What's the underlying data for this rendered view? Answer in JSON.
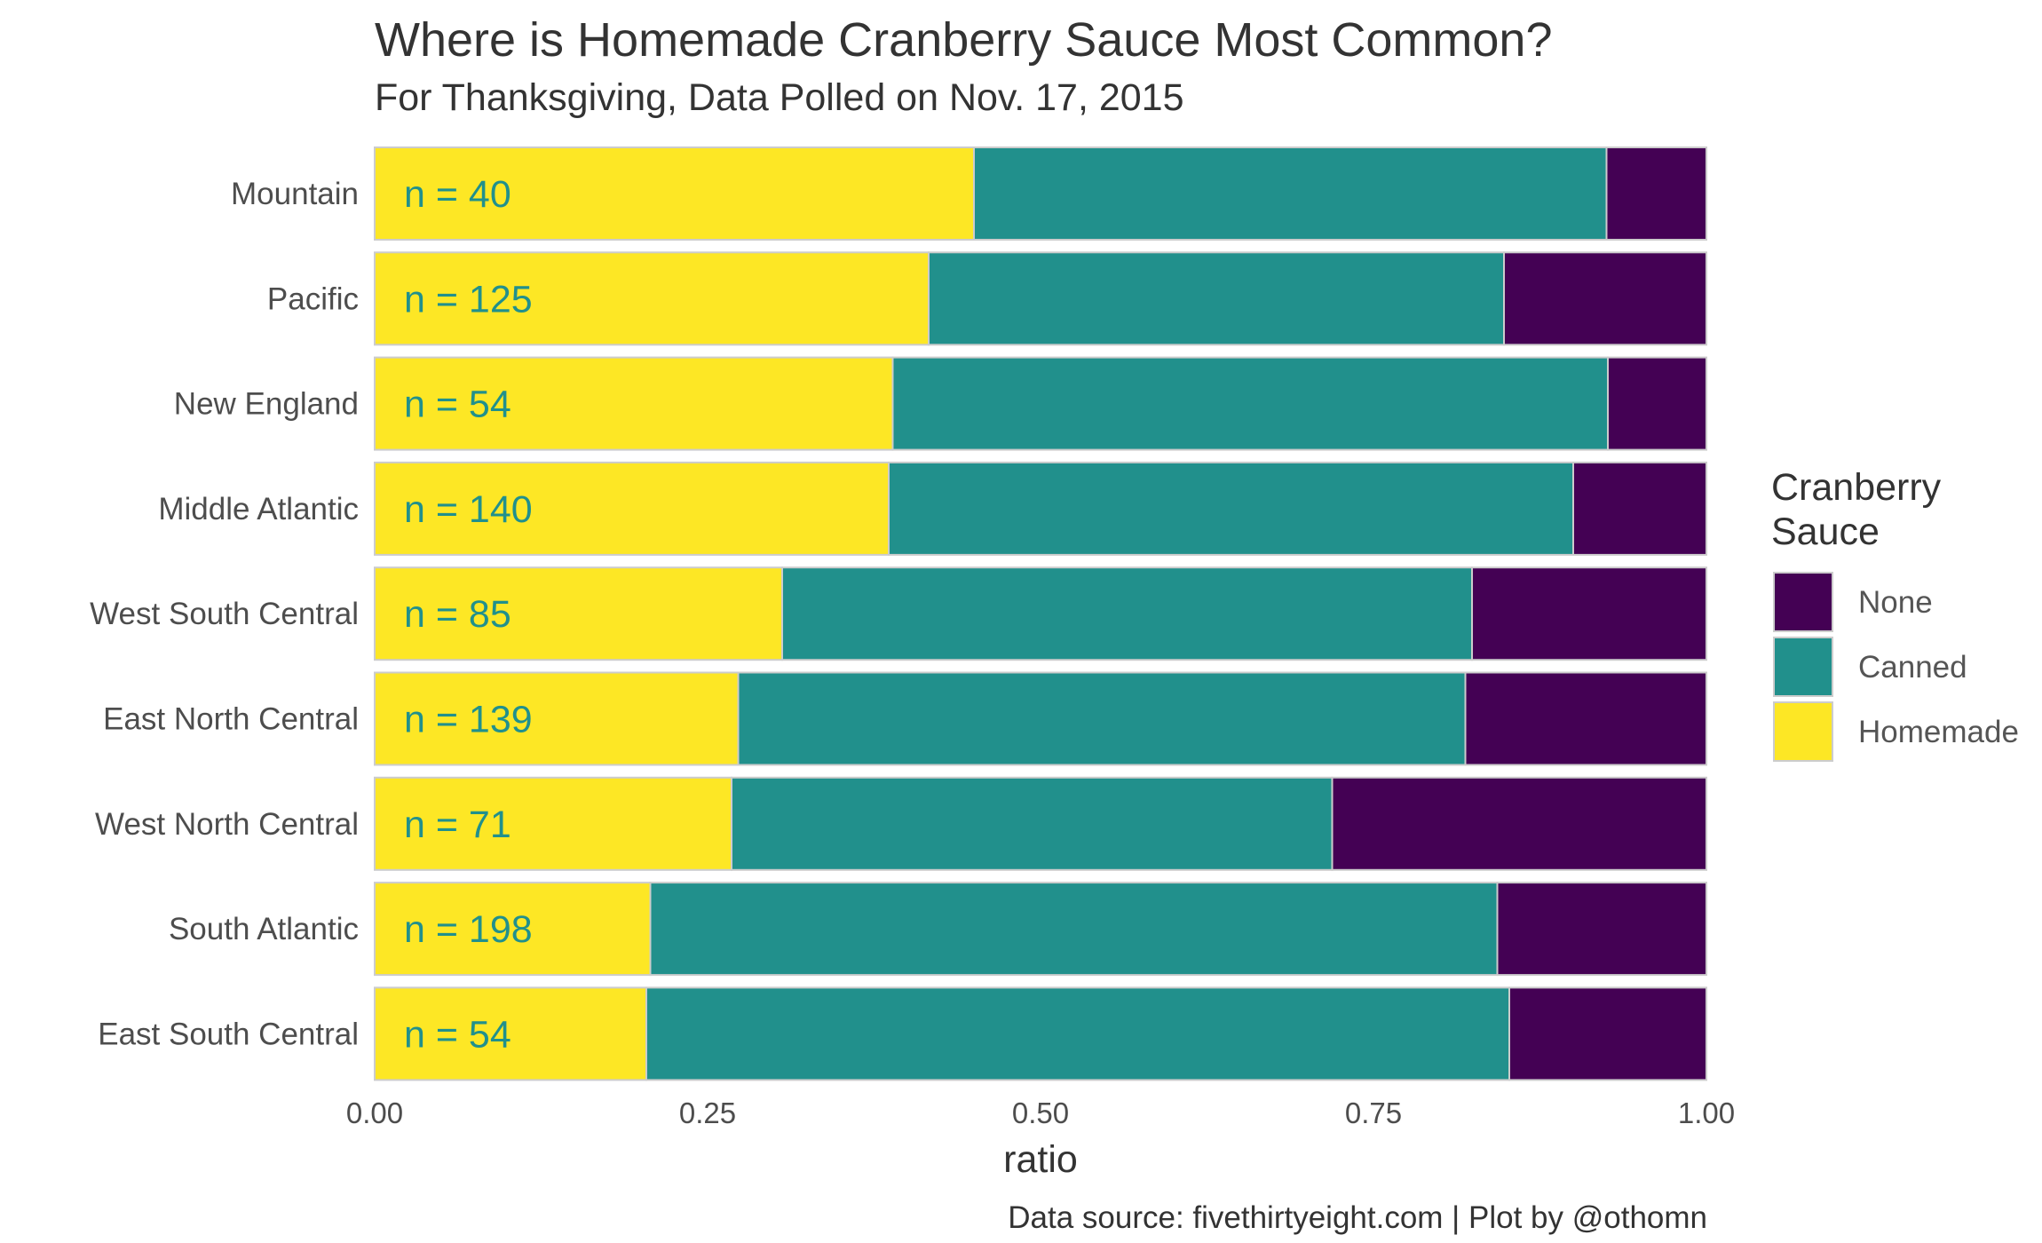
{
  "title": "Where is Homemade Cranberry Sauce Most Common?",
  "subtitle": "For Thanksgiving, Data Polled on Nov. 17, 2015",
  "caption": "Data source: fivethirtyeight.com | Plot by @othomn",
  "legend": {
    "title_lines": [
      "Cranberry",
      "Sauce"
    ],
    "placement": "right"
  },
  "chart_data": {
    "type": "bar",
    "orientation": "horizontal",
    "stacked": true,
    "xlabel": "ratio",
    "ylabel": "",
    "xlim": [
      0,
      1
    ],
    "x_ticks": [
      "0.00",
      "0.25",
      "0.50",
      "0.75",
      "1.00"
    ],
    "x_tick_values": [
      0,
      0.25,
      0.5,
      0.75,
      1
    ],
    "grid": false,
    "categories": [
      "Mountain",
      "Pacific",
      "New England",
      "Middle Atlantic",
      "West South Central",
      "East North Central",
      "West North Central",
      "South Atlantic",
      "East South Central"
    ],
    "n_labels": [
      "n = 40",
      "n = 125",
      "n = 54",
      "n = 140",
      "n = 85",
      "n = 139",
      "n = 71",
      "n = 198",
      "n = 54"
    ],
    "series": [
      {
        "name": "Homemade",
        "color": "#fde725",
        "values": [
          0.45,
          0.416,
          0.389,
          0.386,
          0.306,
          0.273,
          0.268,
          0.207,
          0.204
        ]
      },
      {
        "name": "Canned",
        "color": "#21908c",
        "values": [
          0.475,
          0.432,
          0.537,
          0.514,
          0.518,
          0.546,
          0.451,
          0.636,
          0.648
        ]
      },
      {
        "name": "None",
        "color": "#440154",
        "values": [
          0.075,
          0.152,
          0.074,
          0.1,
          0.176,
          0.181,
          0.281,
          0.157,
          0.148
        ]
      }
    ],
    "legend_order": [
      "None",
      "Canned",
      "Homemade"
    ]
  }
}
